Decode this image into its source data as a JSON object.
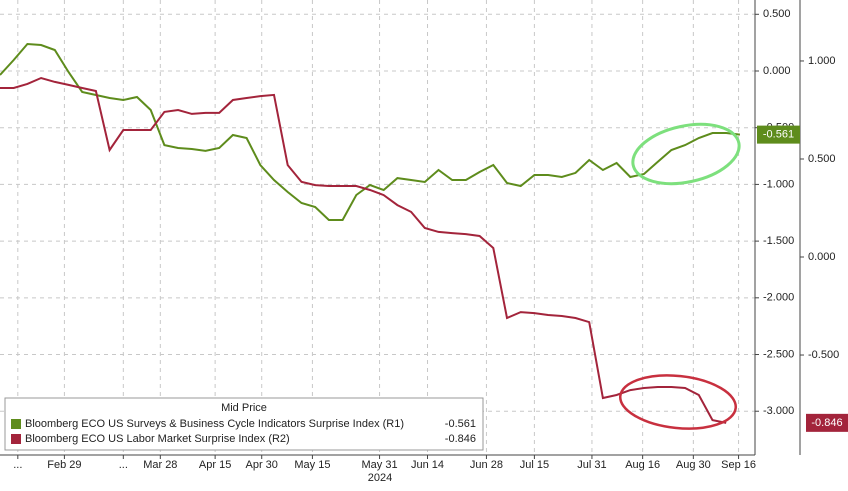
{
  "chart_data": {
    "type": "line",
    "legend_title": "Mid Price",
    "x_axis_year": "2024",
    "grid": true,
    "xlim": [
      0,
      55.1
    ],
    "xticks": [
      {
        "value": 1.3,
        "label": "..."
      },
      {
        "value": 4.7,
        "label": "Feb 29"
      },
      {
        "value": 9,
        "label": "..."
      },
      {
        "value": 11.7,
        "label": "Mar 28"
      },
      {
        "value": 15.7,
        "label": "Apr 15"
      },
      {
        "value": 19.1,
        "label": "Apr 30"
      },
      {
        "value": 22.8,
        "label": "May 15"
      },
      {
        "value": 27.7,
        "label": "May 31"
      },
      {
        "value": 31.2,
        "label": "Jun 14"
      },
      {
        "value": 35.5,
        "label": "Jun 28"
      },
      {
        "value": 39,
        "label": "Jul 15"
      },
      {
        "value": 43.2,
        "label": "Jul 31"
      },
      {
        "value": 46.9,
        "label": "Aug 16"
      },
      {
        "value": 50.6,
        "label": "Aug 30"
      },
      {
        "value": 53.9,
        "label": "Sep 16"
      }
    ],
    "ylim": [
      -3.386,
      0.626
    ],
    "yticks": [
      {
        "value": 0.5,
        "label": "0.500"
      },
      {
        "value": 0,
        "label": "0.000"
      },
      {
        "value": -0.5,
        "label": "-0.500"
      },
      {
        "value": -1,
        "label": "-1.000"
      },
      {
        "value": -1.5,
        "label": "-1.500"
      },
      {
        "value": -2,
        "label": "-2.000"
      },
      {
        "value": -2.5,
        "label": "-2.500"
      },
      {
        "value": -3,
        "label": "-3.000"
      }
    ],
    "y2lim": [
      -1.01,
      1.311
    ],
    "y2ticks": [
      {
        "value": 1,
        "label": "1.000"
      },
      {
        "value": 0.5,
        "label": "0.500"
      },
      {
        "value": 0,
        "label": "0.000"
      },
      {
        "value": -0.5,
        "label": "-0.500"
      }
    ],
    "series": [
      {
        "name": "Bloomberg ECO US Surveys & Business Cycle Indicators Surprise Index (R1)",
        "color": "#5e8c1c",
        "axis": "y",
        "values": [
          -0.035,
          0.097,
          0.238,
          0.229,
          0.185,
          -0.009,
          -0.185,
          -0.212,
          -0.238,
          -0.256,
          -0.229,
          -0.344,
          -0.653,
          -0.679,
          -0.688,
          -0.705,
          -0.679,
          -0.564,
          -0.591,
          -0.829,
          -0.961,
          -1.067,
          -1.164,
          -1.199,
          -1.314,
          -1.314,
          -1.093,
          -1.005,
          -1.049,
          -0.944,
          -0.961,
          -0.979,
          -0.873,
          -0.961,
          -0.961,
          -0.891,
          -0.829,
          -0.988,
          -1.014,
          -0.917,
          -0.917,
          -0.935,
          -0.899,
          -0.785,
          -0.873,
          -0.811,
          -0.935,
          -0.908,
          -0.802,
          -0.697,
          -0.653,
          -0.591,
          -0.547,
          -0.547,
          -0.561
        ]
      },
      {
        "name": "Bloomberg ECO US Labor Market Surprise Index  (R2)",
        "color": "#a3243b",
        "axis": "y2",
        "values": [
          0.862,
          0.862,
          0.883,
          0.913,
          0.893,
          0.878,
          0.862,
          0.847,
          0.546,
          0.648,
          0.648,
          0.648,
          0.74,
          0.75,
          0.73,
          0.735,
          0.735,
          0.801,
          0.811,
          0.821,
          0.827,
          0.469,
          0.383,
          0.367,
          0.362,
          0.362,
          0.362,
          0.342,
          0.316,
          0.265,
          0.23,
          0.148,
          0.128,
          0.122,
          0.117,
          0.107,
          0.046,
          -0.311,
          -0.281,
          -0.286,
          -0.296,
          -0.301,
          -0.311,
          -0.332,
          -0.719,
          -0.704,
          -0.679,
          -0.668,
          -0.663,
          -0.663,
          -0.668,
          -0.704,
          -0.832,
          -0.846,
          null
        ]
      }
    ]
  }
}
